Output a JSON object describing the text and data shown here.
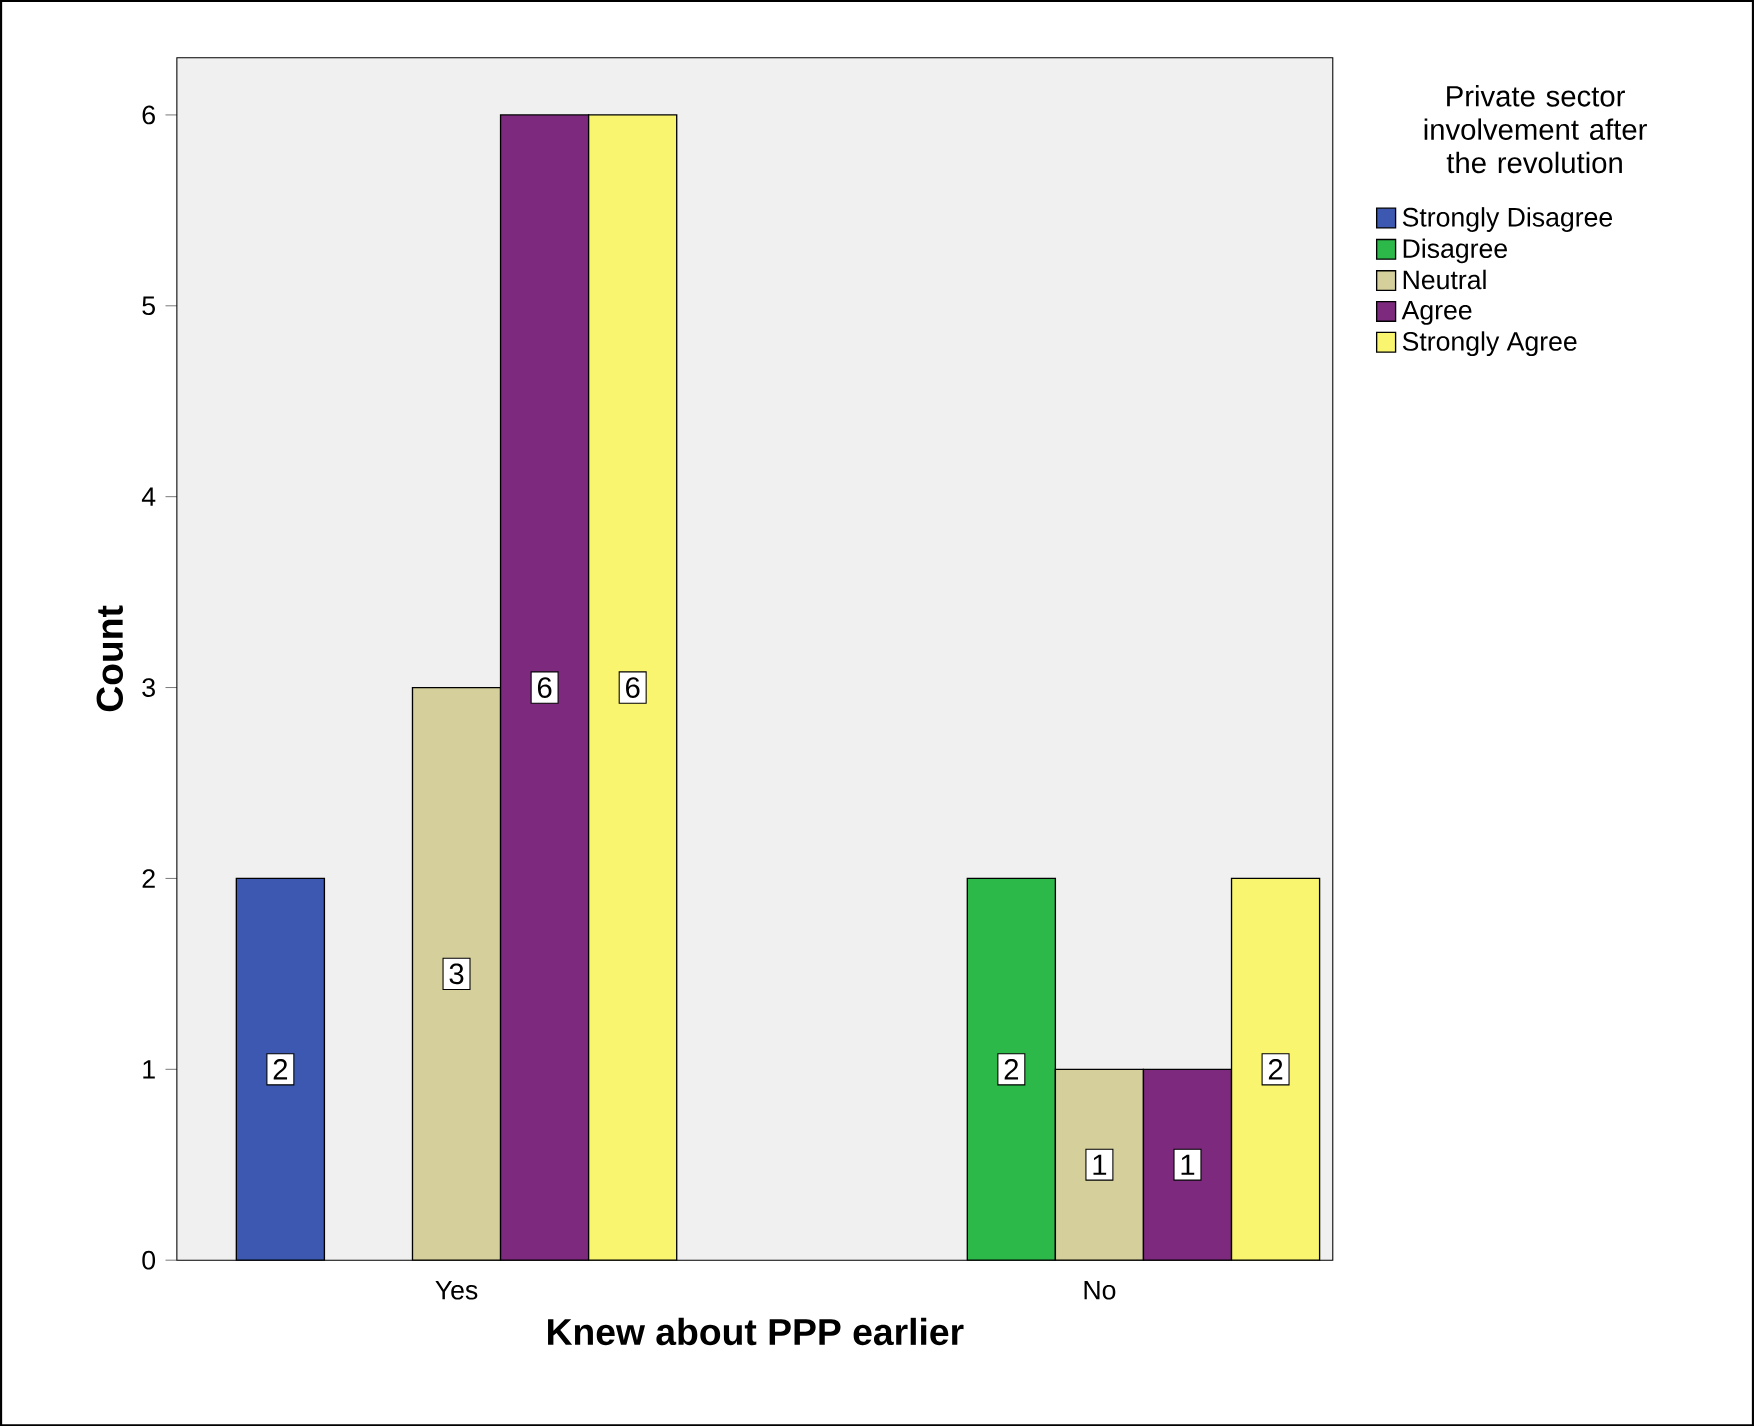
{
  "chart_data": {
    "type": "bar",
    "xlabel": "Knew about PPP earlier",
    "ylabel": "Count",
    "legend_title": "Private sector involvement after the revolution",
    "categories": [
      "Yes",
      "No"
    ],
    "series": [
      {
        "name": "Strongly Disagree",
        "color": "#3c58b0",
        "values": [
          2,
          null
        ]
      },
      {
        "name": "Disagree",
        "color": "#2db84a",
        "values": [
          null,
          2
        ]
      },
      {
        "name": "Neutral",
        "color": "#d4cf9b",
        "values": [
          3,
          1
        ]
      },
      {
        "name": "Agree",
        "color": "#7d2a7e",
        "values": [
          6,
          1
        ]
      },
      {
        "name": "Strongly Agree",
        "color": "#f9f56e",
        "values": [
          6,
          2
        ]
      }
    ],
    "ylim": [
      0,
      6.3
    ],
    "yticks": [
      0,
      1,
      2,
      3,
      4,
      5,
      6
    ],
    "grid": false,
    "legend": "right",
    "data_labels": true
  }
}
